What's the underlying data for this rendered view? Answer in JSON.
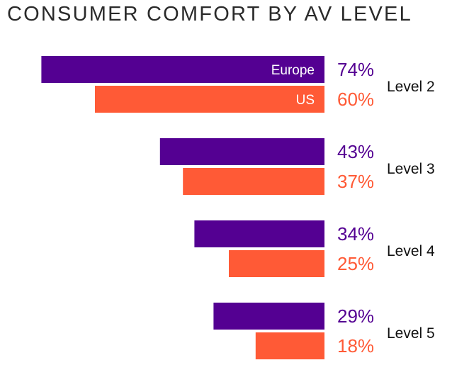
{
  "chart_data": {
    "type": "bar",
    "orientation": "horizontal",
    "title": "CONSUMER COMFORT BY AV LEVEL",
    "categories": [
      "Level 2",
      "Level 3",
      "Level 4",
      "Level 5"
    ],
    "series": [
      {
        "name": "Europe",
        "color": "#540092",
        "values": [
          74,
          43,
          34,
          29
        ]
      },
      {
        "name": "US",
        "color": "#FF5A36",
        "values": [
          60,
          37,
          25,
          18
        ]
      }
    ],
    "value_suffix": "%",
    "xlim": [
      0,
      100
    ],
    "grid": false,
    "legend": "inline labels on first category bars"
  }
}
